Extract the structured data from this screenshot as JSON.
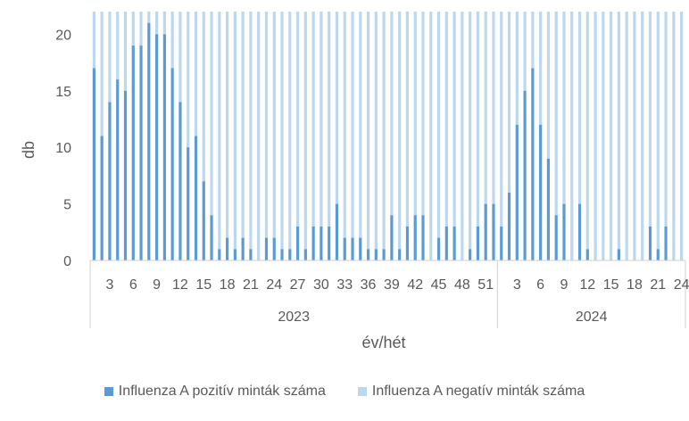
{
  "chart_data": {
    "type": "bar",
    "stacked": true,
    "title": "",
    "xlabel": "év/hét",
    "ylabel": "db",
    "ylim": [
      0,
      22
    ],
    "yticks": [
      0,
      5,
      10,
      15,
      20
    ],
    "grid": false,
    "legend_position": "bottom",
    "years": [
      {
        "label": "2023",
        "weeks": 52
      },
      {
        "label": "2024",
        "weeks": 24
      }
    ],
    "x_tick_labels": [
      "3",
      "6",
      "9",
      "12",
      "15",
      "18",
      "21",
      "24",
      "27",
      "30",
      "33",
      "36",
      "39",
      "42",
      "45",
      "48",
      "51",
      "3",
      "6",
      "9",
      "12",
      "15",
      "18",
      "21",
      "24"
    ],
    "categories": [
      "2023/1",
      "2023/2",
      "2023/3",
      "2023/4",
      "2023/5",
      "2023/6",
      "2023/7",
      "2023/8",
      "2023/9",
      "2023/10",
      "2023/11",
      "2023/12",
      "2023/13",
      "2023/14",
      "2023/15",
      "2023/16",
      "2023/17",
      "2023/18",
      "2023/19",
      "2023/20",
      "2023/21",
      "2023/22",
      "2023/23",
      "2023/24",
      "2023/25",
      "2023/26",
      "2023/27",
      "2023/28",
      "2023/29",
      "2023/30",
      "2023/31",
      "2023/32",
      "2023/33",
      "2023/34",
      "2023/35",
      "2023/36",
      "2023/37",
      "2023/38",
      "2023/39",
      "2023/40",
      "2023/41",
      "2023/42",
      "2023/43",
      "2023/44",
      "2023/45",
      "2023/46",
      "2023/47",
      "2023/48",
      "2023/49",
      "2023/50",
      "2023/51",
      "2023/52",
      "2024/1",
      "2024/2",
      "2024/3",
      "2024/4",
      "2024/5",
      "2024/6",
      "2024/7",
      "2024/8",
      "2024/9",
      "2024/10",
      "2024/11",
      "2024/12",
      "2024/13",
      "2024/14",
      "2024/15",
      "2024/16",
      "2024/17",
      "2024/18",
      "2024/19",
      "2024/20",
      "2024/21",
      "2024/22",
      "2024/23",
      "2024/24"
    ],
    "series": [
      {
        "name": "Influenza A pozitív minták száma",
        "color": "#5b9bd5",
        "values": [
          17,
          11,
          14,
          16,
          15,
          19,
          19,
          21,
          20,
          20,
          17,
          14,
          10,
          11,
          7,
          4,
          1,
          2,
          1,
          2,
          1,
          0,
          2,
          2,
          1,
          1,
          3,
          1,
          3,
          3,
          3,
          5,
          2,
          2,
          2,
          1,
          1,
          1,
          4,
          1,
          3,
          4,
          4,
          0,
          2,
          3,
          3,
          0,
          1,
          3,
          5,
          5,
          3,
          6,
          12,
          15,
          17,
          12,
          9,
          4,
          5,
          0,
          5,
          1,
          0,
          0,
          0,
          1,
          0,
          0,
          0,
          3,
          1,
          3,
          0,
          0
        ],
        "y_extent_note": ""
      },
      {
        "name": "Influenza A negatív minták száma",
        "color": "#bdd7ee",
        "values": [
          5,
          11,
          8,
          6,
          7,
          3,
          3,
          1,
          2,
          2,
          5,
          8,
          12,
          11,
          15,
          18,
          21,
          20,
          21,
          20,
          21,
          22,
          20,
          20,
          21,
          21,
          19,
          21,
          19,
          19,
          19,
          17,
          20,
          20,
          20,
          21,
          21,
          21,
          18,
          21,
          19,
          18,
          18,
          22,
          20,
          19,
          19,
          22,
          21,
          19,
          17,
          17,
          19,
          16,
          10,
          7,
          5,
          10,
          13,
          18,
          17,
          22,
          17,
          21,
          22,
          22,
          22,
          21,
          22,
          22,
          22,
          19,
          21,
          19,
          22,
          22
        ]
      }
    ]
  }
}
